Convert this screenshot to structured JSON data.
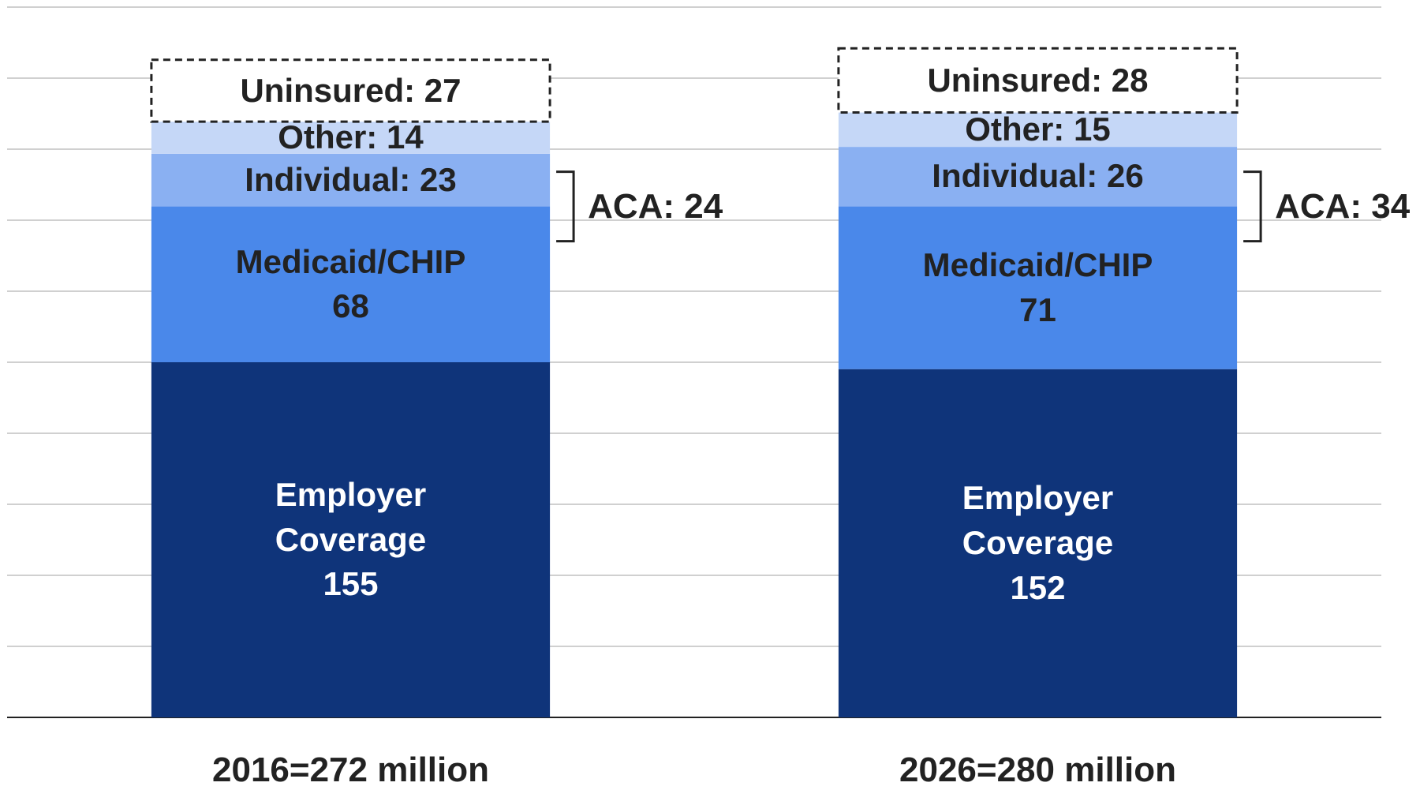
{
  "chart_data": {
    "type": "stacked_bar",
    "categories": [
      "2016=272 million",
      "2026=280 million"
    ],
    "series": [
      {
        "name": "Employer Coverage",
        "color": "#0f347a",
        "values": [
          155,
          152
        ]
      },
      {
        "name": "Medicaid/CHIP",
        "color": "#4a88ea",
        "values": [
          68,
          71
        ]
      },
      {
        "name": "Individual",
        "color": "#8ab0f2",
        "values": [
          23,
          26
        ],
        "value_labels": [
          "Individual: 23",
          "Individual: 26"
        ]
      },
      {
        "name": "Other",
        "color": "#c5d7f7",
        "values": [
          14,
          15
        ],
        "value_labels": [
          "Other: 14",
          "Other: 15"
        ]
      },
      {
        "name": "Uninsured",
        "color": "#ffffff",
        "border": "dashed",
        "values": [
          27,
          28
        ],
        "value_labels": [
          "Uninsured: 27",
          "Uninsured: 28"
        ]
      }
    ],
    "aca": {
      "values": [
        24,
        34
      ],
      "value_labels": [
        "ACA: 24",
        "ACA: 34"
      ]
    },
    "ylim": [
      0,
      310
    ],
    "yticks": [
      0,
      31,
      62,
      93,
      124,
      155,
      186,
      217,
      248,
      279,
      310
    ],
    "grid": true
  }
}
